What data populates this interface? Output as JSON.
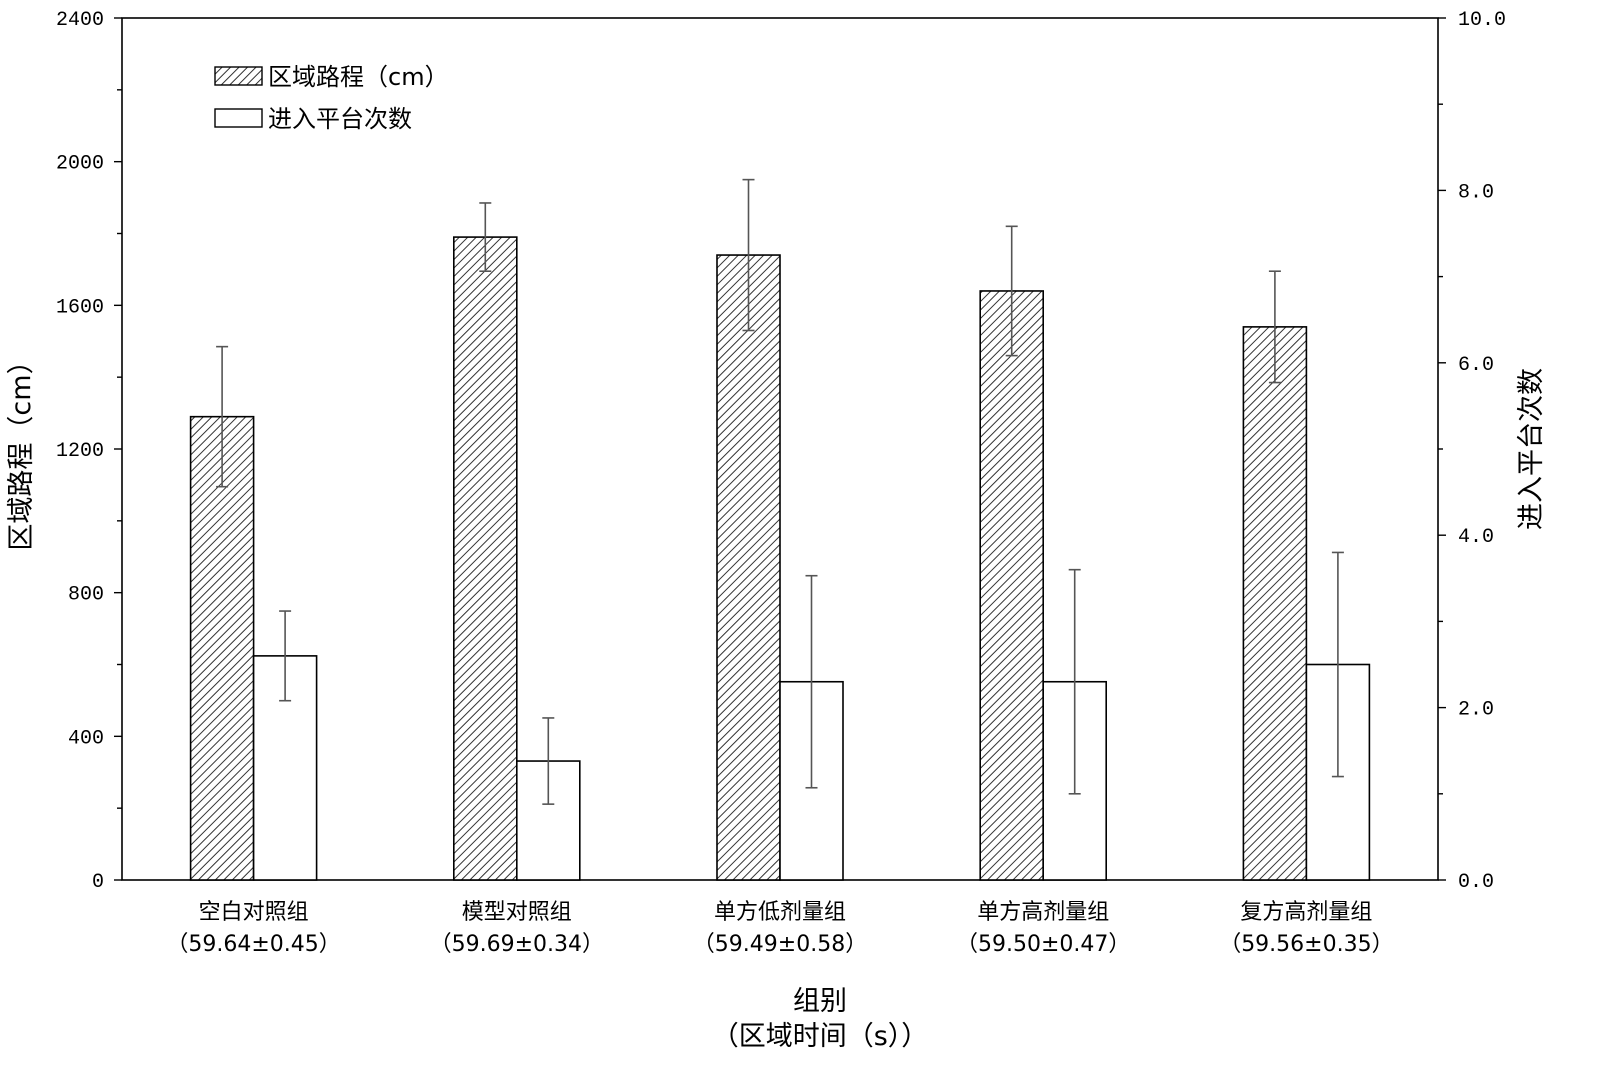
{
  "chart_data": {
    "type": "bar",
    "categories": [
      {
        "name": "空白对照组",
        "sub": "（59.64±0.45）"
      },
      {
        "name": "模型对照组",
        "sub": "（59.69±0.34）"
      },
      {
        "name": "单方低剂量组",
        "sub": "（59.49±0.58）"
      },
      {
        "name": "单方高剂量组",
        "sub": "（59.50±0.47）"
      },
      {
        "name": "复方高剂量组",
        "sub": "（59.56±0.35）"
      }
    ],
    "series": [
      {
        "name": "区域路程（cm）",
        "axis": "left",
        "fill": "hatched",
        "values": [
          1290,
          1790,
          1740,
          1640,
          1540
        ],
        "errors": [
          195,
          95,
          210,
          180,
          155
        ]
      },
      {
        "name": "进入平台次数",
        "axis": "right",
        "fill": "white",
        "values": [
          2.6,
          1.38,
          2.3,
          2.3,
          2.5
        ],
        "errors": [
          0.52,
          0.5,
          1.23,
          1.3,
          1.3
        ]
      }
    ],
    "ylabel": "区域路程（cm）",
    "y2label": "进入平台次数",
    "xlabel": "组别",
    "xlabel_sub": "（区域时间（s））",
    "ylim": [
      0,
      2400
    ],
    "y2lim": [
      0,
      10
    ],
    "yticks": [
      "0",
      "400",
      "800",
      "1200",
      "1600",
      "2000",
      "2400"
    ],
    "y2ticks": [
      "0.0",
      "2.0",
      "4.0",
      "6.0",
      "8.0",
      "10.0"
    ],
    "legend_position": "top-left",
    "grid": false
  }
}
